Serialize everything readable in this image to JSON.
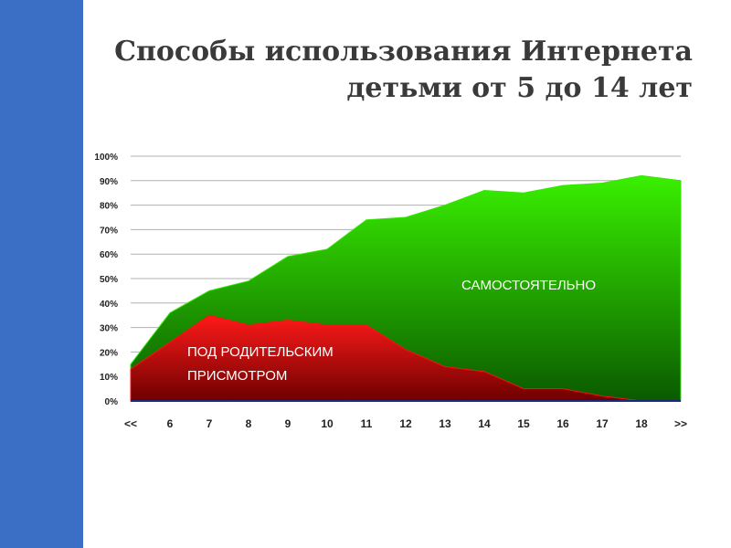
{
  "chart_data": {
    "type": "area",
    "title": [
      "Способы использования Интернета",
      "детьми от 5 до 14 лет"
    ],
    "categories": [
      "<<",
      "6",
      "7",
      "8",
      "9",
      "10",
      "11",
      "12",
      "13",
      "14",
      "15",
      "16",
      "17",
      "18",
      ">>"
    ],
    "series": [
      {
        "label": [
          "САМОСТОЯТЕЛЬНО"
        ],
        "color": "#33e800",
        "values": [
          15,
          36,
          45,
          49,
          59,
          62,
          74,
          75,
          80,
          86,
          85,
          88,
          89,
          92,
          90
        ]
      },
      {
        "label": [
          "ПОД РОДИТЕЛЬСКИМ",
          "ПРИСМОТРОМ"
        ],
        "color": "#ff1010",
        "values": [
          13,
          24,
          35,
          31,
          33,
          31,
          31,
          21,
          14,
          12,
          5,
          5,
          2,
          0,
          0
        ]
      }
    ],
    "ylim": [
      0,
      100
    ],
    "yticks": [
      {
        "value": 0,
        "label": "0%"
      },
      {
        "value": 10,
        "label": "10%"
      },
      {
        "value": 20,
        "label": "20%"
      },
      {
        "value": 30,
        "label": "30%"
      },
      {
        "value": 40,
        "label": "40%"
      },
      {
        "value": 50,
        "label": "50%"
      },
      {
        "value": 60,
        "label": "60%"
      },
      {
        "value": 70,
        "label": "70%"
      },
      {
        "value": 80,
        "label": "80%"
      },
      {
        "value": 90,
        "label": "90%"
      },
      {
        "value": 100,
        "label": "100%"
      }
    ],
    "grid": true
  }
}
